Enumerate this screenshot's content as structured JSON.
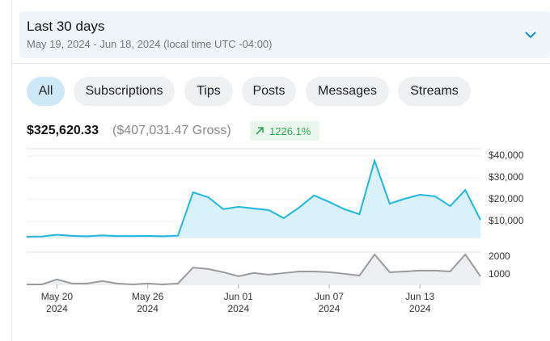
{
  "header": {
    "title": "Last 30 days",
    "subtitle": "May 19, 2024 - Jun 18, 2024 (local time UTC -04:00)"
  },
  "tabs": [
    {
      "label": "All",
      "active": true
    },
    {
      "label": "Subscriptions"
    },
    {
      "label": "Tips"
    },
    {
      "label": "Posts"
    },
    {
      "label": "Messages"
    },
    {
      "label": "Streams"
    }
  ],
  "summary": {
    "net": "$325,620.33",
    "gross": "($407,031.47 Gross)",
    "change": "1226.1%"
  },
  "chart_data": [
    {
      "type": "area",
      "x": [
        "2024-05-18",
        "2024-05-19",
        "2024-05-20",
        "2024-05-21",
        "2024-05-22",
        "2024-05-23",
        "2024-05-24",
        "2024-05-25",
        "2024-05-26",
        "2024-05-27",
        "2024-05-28",
        "2024-05-29",
        "2024-05-30",
        "2024-05-31",
        "2024-06-01",
        "2024-06-02",
        "2024-06-03",
        "2024-06-04",
        "2024-06-05",
        "2024-06-06",
        "2024-06-07",
        "2024-06-08",
        "2024-06-09",
        "2024-06-10",
        "2024-06-11",
        "2024-06-12",
        "2024-06-13",
        "2024-06-14",
        "2024-06-15",
        "2024-06-16",
        "2024-06-17"
      ],
      "series": [
        {
          "color": "#22b6dd",
          "fill": "#d8f1fa",
          "values": [
            3000,
            3100,
            3900,
            3400,
            3200,
            3600,
            3300,
            3300,
            3400,
            3200,
            3500,
            23300,
            21100,
            15600,
            16700,
            15900,
            15200,
            11500,
            16300,
            21900,
            18900,
            15600,
            13300,
            37800,
            18100,
            20400,
            22200,
            21500,
            17000,
            24400,
            10700
          ]
        }
      ],
      "ylim": [
        2600,
        43300
      ],
      "yticks": [
        {
          "value": 10000,
          "label": "$10,000"
        },
        {
          "value": 20000,
          "label": "$20,000"
        },
        {
          "value": 30000,
          "label": "$30,000"
        },
        {
          "value": 40000,
          "label": "$40,000"
        }
      ],
      "grid": true
    },
    {
      "type": "area",
      "x": [
        "2024-05-18",
        "2024-05-19",
        "2024-05-20",
        "2024-05-21",
        "2024-05-22",
        "2024-05-23",
        "2024-05-24",
        "2024-05-25",
        "2024-05-26",
        "2024-05-27",
        "2024-05-28",
        "2024-05-29",
        "2024-05-30",
        "2024-05-31",
        "2024-06-01",
        "2024-06-02",
        "2024-06-03",
        "2024-06-04",
        "2024-06-05",
        "2024-06-06",
        "2024-06-07",
        "2024-06-08",
        "2024-06-09",
        "2024-06-10",
        "2024-06-11",
        "2024-06-12",
        "2024-06-13",
        "2024-06-14",
        "2024-06-15",
        "2024-06-16",
        "2024-06-17"
      ],
      "series": [
        {
          "color": "#9a9a9a",
          "fill": "#eceef1",
          "values": [
            450,
            450,
            730,
            500,
            500,
            640,
            500,
            450,
            500,
            450,
            500,
            1400,
            1320,
            1140,
            910,
            1090,
            1000,
            1090,
            1180,
            1180,
            1140,
            1050,
            950,
            2140,
            1140,
            1180,
            1230,
            1230,
            1180,
            2140,
            910
          ]
        }
      ],
      "ylim": [
        450,
        2270
      ],
      "yticks": [
        1000,
        2000
      ],
      "grid": false,
      "xticks": [
        {
          "value": "2024-05-20",
          "label": [
            "May 20",
            "2024"
          ]
        },
        {
          "value": "2024-05-26",
          "label": [
            "May 26",
            "2024"
          ]
        },
        {
          "value": "2024-06-01",
          "label": [
            "Jun 01",
            "2024"
          ]
        },
        {
          "value": "2024-06-07",
          "label": [
            "Jun 07",
            "2024"
          ]
        },
        {
          "value": "2024-06-13",
          "label": [
            "Jun 13",
            "2024"
          ]
        }
      ]
    }
  ]
}
